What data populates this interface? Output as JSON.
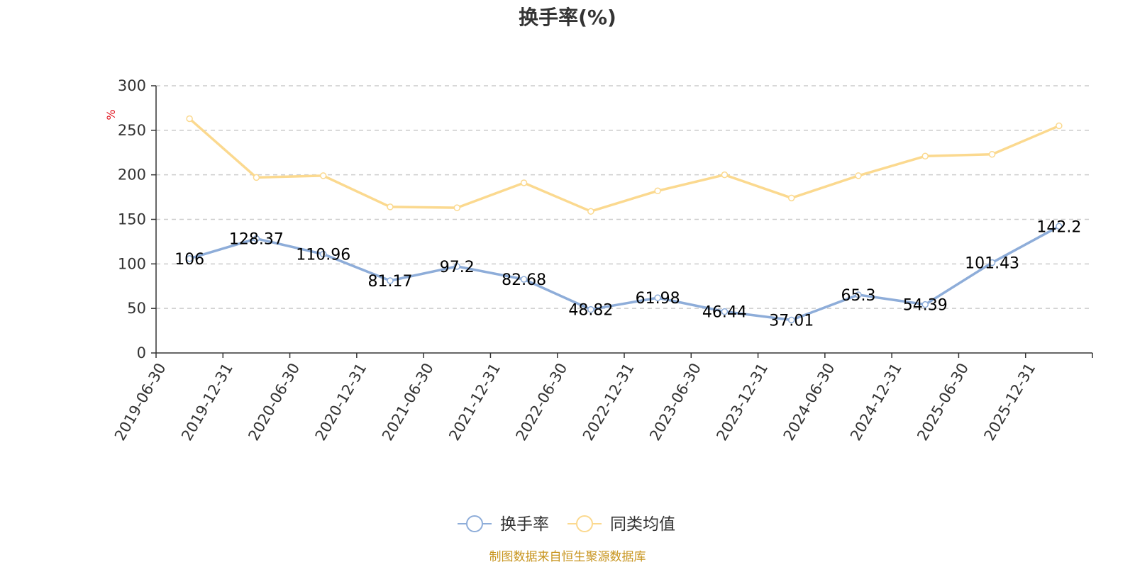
{
  "chart_data": {
    "type": "line",
    "title": "换手率(%)",
    "ylabel": "%",
    "xlabel": "",
    "ylim": [
      0,
      300
    ],
    "yticks": [
      0,
      50,
      100,
      150,
      200,
      250,
      300
    ],
    "grid": true,
    "legend_position": "bottom-center",
    "categories": [
      "2019-06-30",
      "2019-12-31",
      "2020-06-30",
      "2020-12-31",
      "2021-06-30",
      "2021-12-31",
      "2022-06-30",
      "2022-12-31",
      "2023-06-30",
      "2023-12-31",
      "2024-06-30",
      "2024-12-31",
      "2025-06-30",
      "2025-12-31"
    ],
    "series": [
      {
        "name": "换手率",
        "color": "#8eadd9",
        "show_labels": true,
        "values": [
          106,
          128.37,
          110.96,
          81.17,
          97.2,
          82.68,
          48.82,
          61.98,
          46.44,
          37.01,
          65.3,
          54.39,
          101.43,
          142.2
        ]
      },
      {
        "name": "同类均值",
        "color": "#fbd98f",
        "show_labels": false,
        "values": [
          263,
          197,
          199,
          164,
          163,
          191,
          159,
          182,
          200,
          174,
          199,
          221,
          223,
          255
        ]
      }
    ],
    "source": "制图数据来自恒生聚源数据库"
  }
}
